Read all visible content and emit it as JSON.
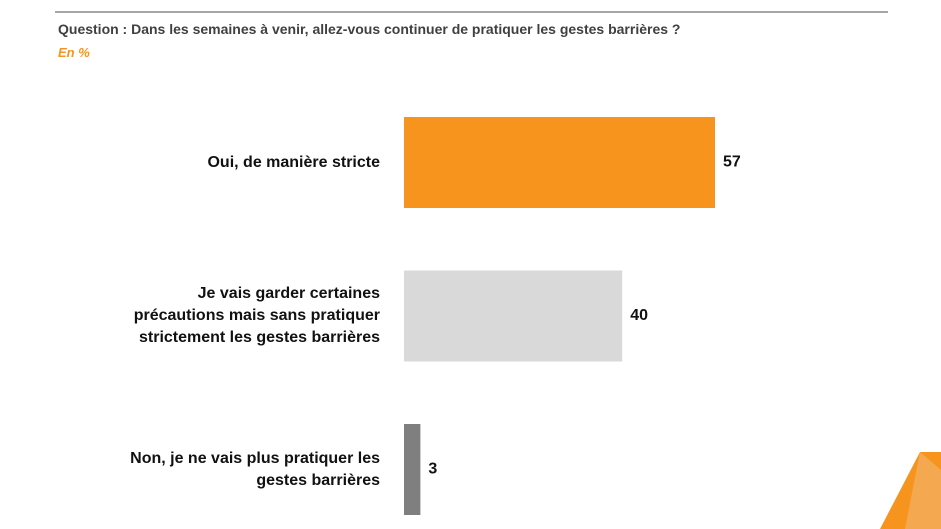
{
  "chart_data": {
    "type": "bar",
    "horizontal": true,
    "title": "Question : Dans les semaines à venir, allez-vous continuer de pratiquer les gestes barrières ?",
    "subtitle": "En %",
    "categories": [
      "Oui, de manière stricte",
      "Je vais garder certaines\nprécautions mais sans pratiquer\nstrictement les gestes barrières",
      "Non, je ne vais plus pratiquer les\ngestes barrières"
    ],
    "values": [
      57,
      40,
      3
    ],
    "colors": [
      "#f7941d",
      "#d9d9d9",
      "#7f7f7f"
    ]
  }
}
